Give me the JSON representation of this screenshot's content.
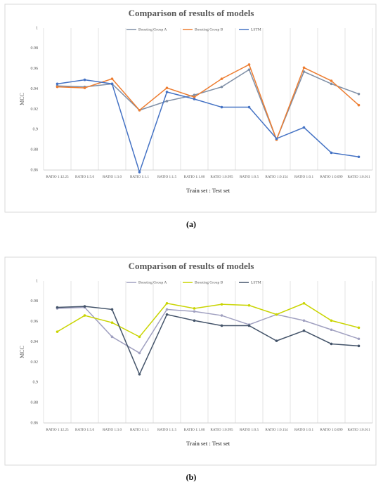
{
  "chart_data": [
    {
      "type": "line",
      "title": "Comparison of results of models",
      "x_label": "Train set : Test set",
      "y_label": "MCC",
      "caption": "(a)",
      "categories": [
        "RATIO 1:12.25",
        "RATIO 1:5.0",
        "RATIO 1:3.0",
        "RATIO 1:1.1",
        "RATIO 1:1.5",
        "RATIO 1:1.00",
        "RATIO 1:0.995",
        "RATIO 1:0.5",
        "RATIO 1:0.154",
        "RATIO 1:0.1",
        "RATIO 1:0.099",
        "RATIO 1:0.011"
      ],
      "series": [
        {
          "name": "Boosting Group A",
          "color": "#7f8fa6",
          "values": [
            0.943,
            0.942,
            0.945,
            0.919,
            0.928,
            0.934,
            0.942,
            0.959,
            0.89,
            0.957,
            0.945,
            0.935
          ]
        },
        {
          "name": "Boosting Group B",
          "color": "#ed7d31",
          "values": [
            0.942,
            0.941,
            0.95,
            0.919,
            0.941,
            0.932,
            0.95,
            0.964,
            0.89,
            0.961,
            0.948,
            0.924
          ]
        },
        {
          "name": "LSTM",
          "color": "#4472c4",
          "values": [
            0.945,
            0.949,
            0.945,
            0.858,
            0.937,
            0.93,
            0.922,
            0.922,
            0.891,
            0.902,
            0.877,
            0.873
          ]
        }
      ],
      "ylim": [
        0.86,
        1
      ],
      "yticks": [
        0.86,
        0.88,
        0.9,
        0.92,
        0.94,
        0.96,
        0.98,
        1
      ],
      "grid": true,
      "legend": "top"
    },
    {
      "type": "line",
      "title": "Comparison of results of models",
      "x_label": "Train set : Test set",
      "y_label": "MCC",
      "caption": "(b)",
      "categories": [
        "RATIO 1:12.25",
        "RATIO 1:5.0",
        "RATIO 1:3.0",
        "RATIO 1:1.1",
        "RATIO 1:1.5",
        "RATIO 1:1.00",
        "RATIO 1:0.995",
        "RATIO 1:0.5",
        "RATIO 1:0.154",
        "RATIO 1:0.1",
        "RATIO 1:0.099",
        "RATIO 1:0.011"
      ],
      "series": [
        {
          "name": "Boosting Group A",
          "color": "#a0a0c0",
          "values": [
            0.973,
            0.974,
            0.945,
            0.929,
            0.972,
            0.97,
            0.966,
            0.957,
            0.967,
            0.961,
            0.952,
            0.943
          ]
        },
        {
          "name": "Boosting Group B",
          "color": "#c9d400",
          "values": [
            0.95,
            0.966,
            0.959,
            0.945,
            0.978,
            0.973,
            0.977,
            0.976,
            0.967,
            0.978,
            0.961,
            0.954
          ]
        },
        {
          "name": "LSTM",
          "color": "#44546a",
          "values": [
            0.974,
            0.975,
            0.972,
            0.908,
            0.967,
            0.961,
            0.956,
            0.956,
            0.941,
            0.951,
            0.938,
            0.936
          ]
        }
      ],
      "ylim": [
        0.86,
        1
      ],
      "yticks": [
        0.86,
        0.88,
        0.9,
        0.92,
        0.94,
        0.96,
        0.98,
        1
      ],
      "grid": true,
      "legend": "top"
    }
  ]
}
